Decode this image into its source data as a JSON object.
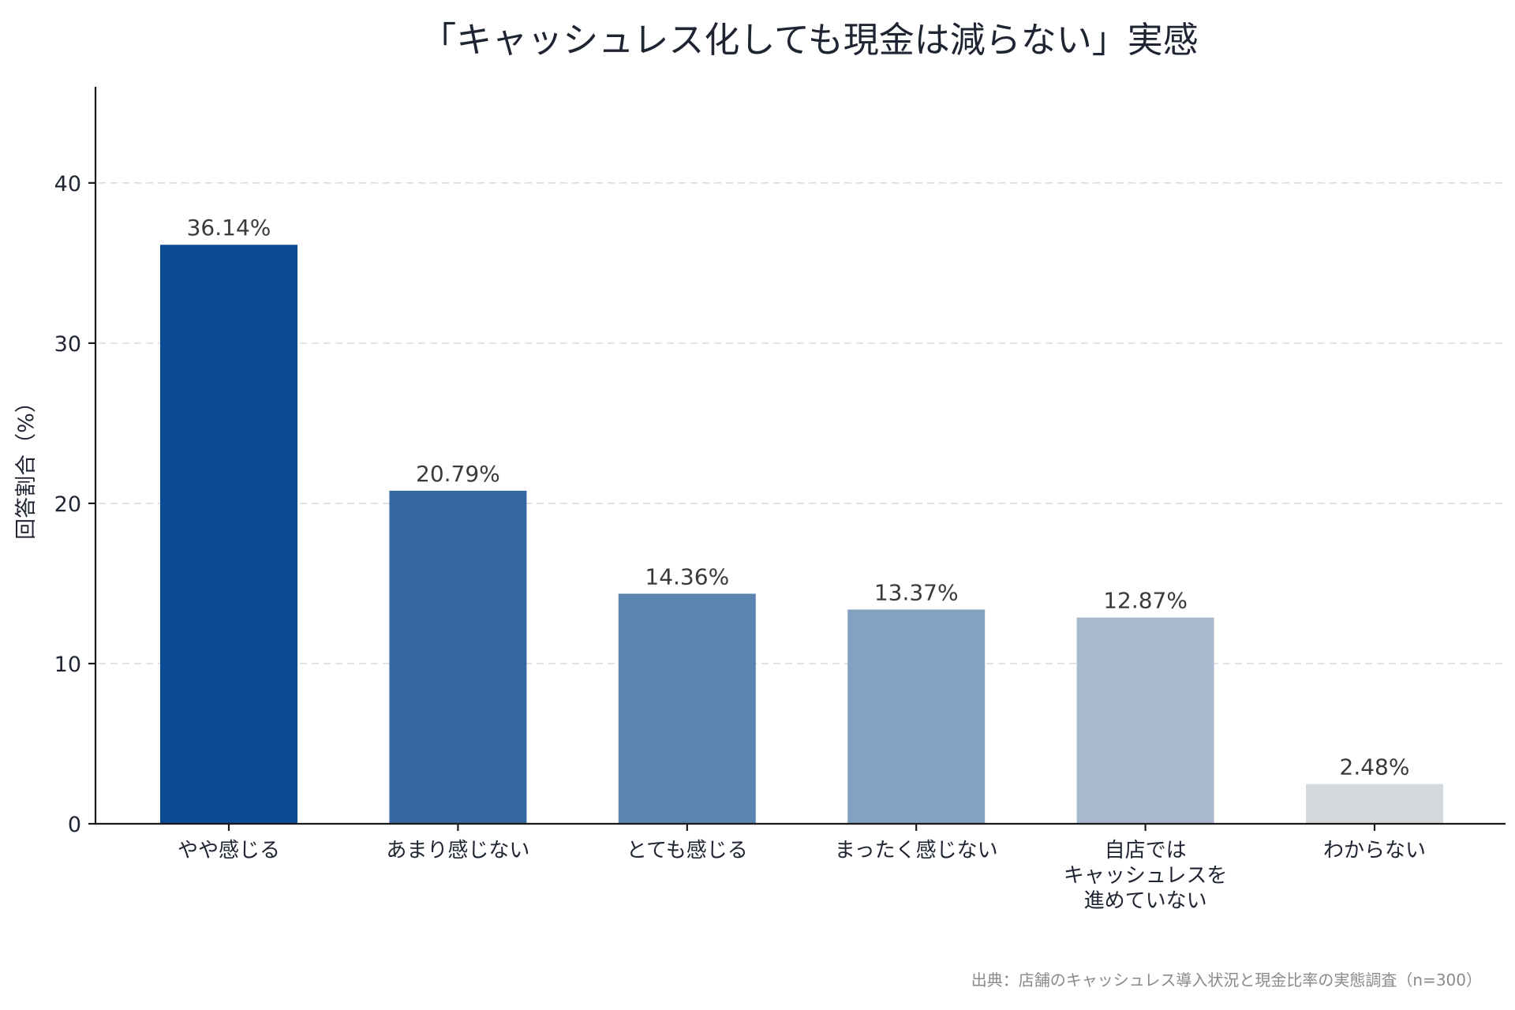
{
  "chart_data": {
    "type": "bar",
    "title": "「キャッシュレス化しても現金は減らない」実感",
    "xlabel": "",
    "ylabel": "回答割合（%）",
    "ylim": [
      0,
      46
    ],
    "yticks": [
      0,
      10,
      20,
      30,
      40
    ],
    "grid": true,
    "categories": [
      [
        "やや感じる"
      ],
      [
        "あまり感じない"
      ],
      [
        "とても感じる"
      ],
      [
        "まったく感じない"
      ],
      [
        "自店では",
        "キャッシュレスを",
        "進めていない"
      ],
      [
        "わからない"
      ]
    ],
    "values": [
      36.14,
      20.79,
      14.36,
      13.37,
      12.87,
      2.48
    ],
    "value_labels": [
      "36.14%",
      "20.79%",
      "14.36%",
      "13.37%",
      "12.87%",
      "2.48%"
    ],
    "colors": [
      "#0c4b96",
      "#3567a0",
      "#5b84b0",
      "#83a1c0",
      "#a9b9cc",
      "#d3d9dd"
    ],
    "source": "出典：店舗のキャッシュレス導入状況と現金比率の実態調査（n=300）"
  }
}
